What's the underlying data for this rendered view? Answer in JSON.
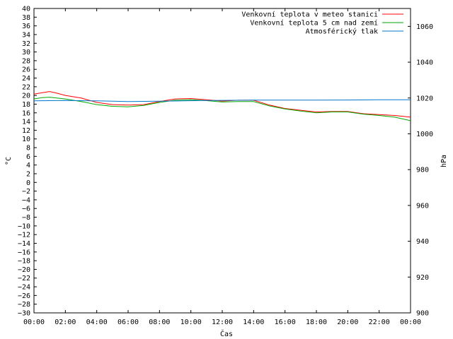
{
  "chart_data": {
    "type": "line",
    "xlabel": "Čas",
    "ylabel": "°C",
    "y2label": "hPa",
    "x_ticks": [
      "00:00",
      "02:00",
      "04:00",
      "06:00",
      "08:00",
      "10:00",
      "12:00",
      "14:00",
      "16:00",
      "18:00",
      "20:00",
      "22:00",
      "00:00"
    ],
    "xlim": [
      0,
      24
    ],
    "ylim": [
      -30,
      40
    ],
    "y_step": 2,
    "y2lim": [
      900,
      1070
    ],
    "y2_ticks": [
      900,
      920,
      940,
      960,
      980,
      1000,
      1020,
      1040,
      1060
    ],
    "grid": false,
    "legend_position": "top-right",
    "series": [
      {
        "name": "Venkovní teplota v meteo stanici",
        "color": "#ff0000",
        "axis": "left",
        "x": [
          0,
          0.5,
          1,
          1.5,
          2,
          3,
          4,
          5,
          6,
          7,
          8,
          8.5,
          9,
          10,
          11,
          12,
          13,
          14,
          15,
          16,
          17,
          18,
          19,
          20,
          21,
          22,
          23,
          24
        ],
        "y": [
          20.3,
          20.6,
          20.9,
          20.5,
          20.0,
          19.4,
          18.4,
          17.9,
          17.8,
          17.9,
          18.6,
          18.9,
          19.2,
          19.3,
          19.0,
          18.7,
          18.9,
          18.9,
          17.8,
          17.0,
          16.6,
          16.2,
          16.3,
          16.3,
          15.8,
          15.6,
          15.4,
          15.0
        ]
      },
      {
        "name": "Venkovní teplota 5 cm nad zemí",
        "color": "#00aa00",
        "axis": "left",
        "x": [
          0,
          0.5,
          1,
          2,
          3,
          4,
          5,
          6,
          7,
          8,
          9,
          10,
          11,
          12,
          13,
          14,
          15,
          16,
          17,
          18,
          19,
          20,
          21,
          22,
          23,
          24
        ],
        "y": [
          19.2,
          19.5,
          19.6,
          19.2,
          18.6,
          17.9,
          17.5,
          17.4,
          17.7,
          18.4,
          18.9,
          19.0,
          18.8,
          18.5,
          18.6,
          18.6,
          17.6,
          16.9,
          16.4,
          16.0,
          16.2,
          16.2,
          15.7,
          15.4,
          15.0,
          14.2
        ]
      },
      {
        "name": "Atmosférický tlak",
        "color": "#0077cc",
        "axis": "right",
        "x": [
          0,
          2,
          4,
          6,
          8,
          10,
          12,
          14,
          16,
          18,
          20,
          22,
          24
        ],
        "y": [
          1018.4,
          1018.6,
          1018.4,
          1018.0,
          1018.2,
          1018.5,
          1018.7,
          1018.8,
          1018.8,
          1018.8,
          1018.9,
          1019.0,
          1019.0
        ]
      }
    ]
  }
}
